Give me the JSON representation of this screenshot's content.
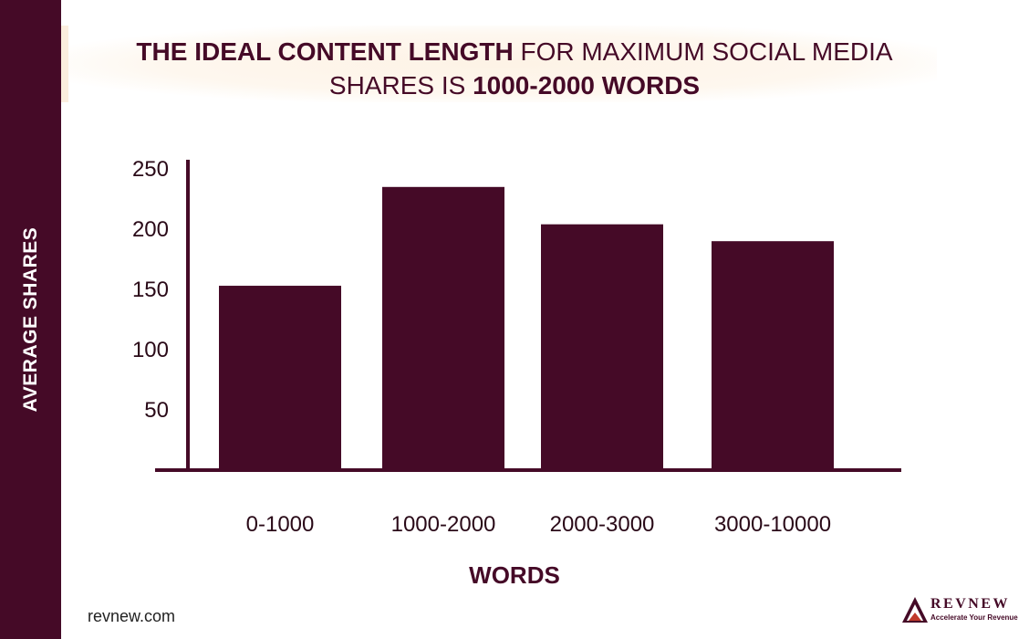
{
  "title": {
    "part1_bold": "The Ideal Content Length",
    "part2": " for Maximum Social Media Shares is ",
    "part3_bold": "1000-2000 Words"
  },
  "chart_data": {
    "type": "bar",
    "categories": [
      "0-1000",
      "1000-2000",
      "2000-3000",
      "3000-10000"
    ],
    "values": [
      153,
      235,
      204,
      190
    ],
    "xlabel": "WORDS",
    "ylabel": "AVERAGE SHARES",
    "yticks": [
      50,
      100,
      150,
      200,
      250
    ],
    "ylim": [
      0,
      250
    ],
    "grid": false,
    "bar_color": "#450a27"
  },
  "footer": {
    "source": "revnew.com",
    "logo_name": "REVNEW",
    "logo_tagline": "Accelerate Your Revenue"
  },
  "colors": {
    "brand": "#450a27",
    "title_highlight": "#fdf2e4"
  }
}
